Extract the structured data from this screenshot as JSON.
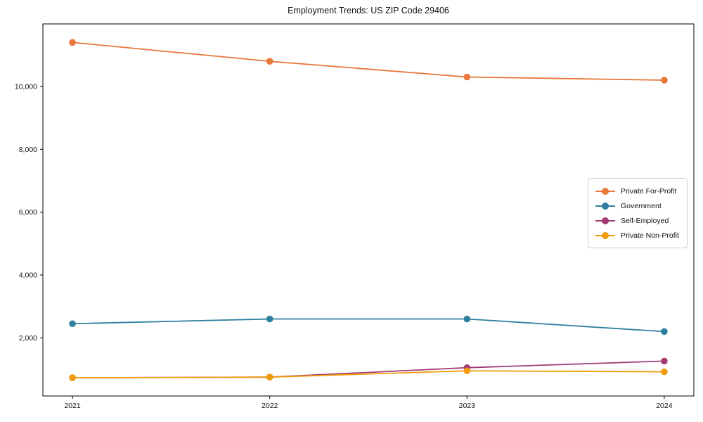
{
  "title": "Employment Trends: US ZIP Code 29406",
  "chart_data": {
    "type": "line",
    "title": "Employment Trends: US ZIP Code 29406",
    "xlabel": "",
    "ylabel": "",
    "x": [
      2021,
      2022,
      2023,
      2024
    ],
    "x_tick_labels": [
      "2021",
      "2022",
      "2023",
      "2024"
    ],
    "y_ticks": [
      2000,
      4000,
      6000,
      8000,
      10000
    ],
    "y_tick_labels": [
      "2,000",
      "4,000",
      "6,000",
      "8,000",
      "10,000"
    ],
    "xlim": [
      2020.85,
      2024.15
    ],
    "ylim": [
      150,
      11990
    ],
    "grid": false,
    "legend_position": "center right",
    "series": [
      {
        "name": "Private For-Profit",
        "color": "#e8773b",
        "values": [
          11400,
          10800,
          10300,
          10200
        ]
      },
      {
        "name": "Government",
        "color": "#2e7fa0",
        "values": [
          2450,
          2600,
          2600,
          2200
        ]
      },
      {
        "name": "Self-Employed",
        "color": "#a23a72",
        "values": [
          730,
          750,
          1050,
          1260
        ]
      },
      {
        "name": "Private Non-Profit",
        "color": "#f09c0d",
        "values": [
          730,
          750,
          950,
          920
        ]
      }
    ]
  }
}
